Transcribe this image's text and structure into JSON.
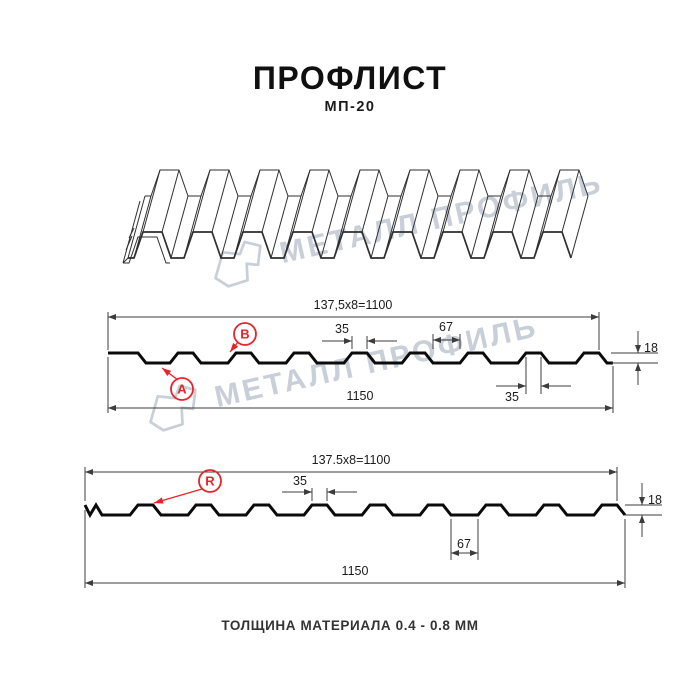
{
  "header": {
    "title": "ПРОФЛИСТ",
    "subtitle": "МП-20"
  },
  "footer": {
    "text": "ТОЛЩИНА МАТЕРИАЛА 0.4 - 0.8 ММ"
  },
  "watermark": {
    "text": "МЕТАЛЛ ПРОФИЛЬ"
  },
  "colors": {
    "accent_red": "#E8242A",
    "line": "#3C3C3C",
    "profile": "#0B0B0B",
    "watermark": "#C9CFD9"
  },
  "section_top": {
    "coverage_width": "137,5x8=1100",
    "rib_top_width": "35",
    "valley_width": "67",
    "profile_height": "18",
    "rib_bottom_width": "35",
    "overall_width": "1150",
    "marker_a": "A",
    "marker_b": "B"
  },
  "section_bottom": {
    "coverage_width": "137.5x8=1100",
    "rib_top_width": "35",
    "valley_width": "67",
    "profile_height": "18",
    "overall_width": "1150",
    "marker_r": "R"
  }
}
